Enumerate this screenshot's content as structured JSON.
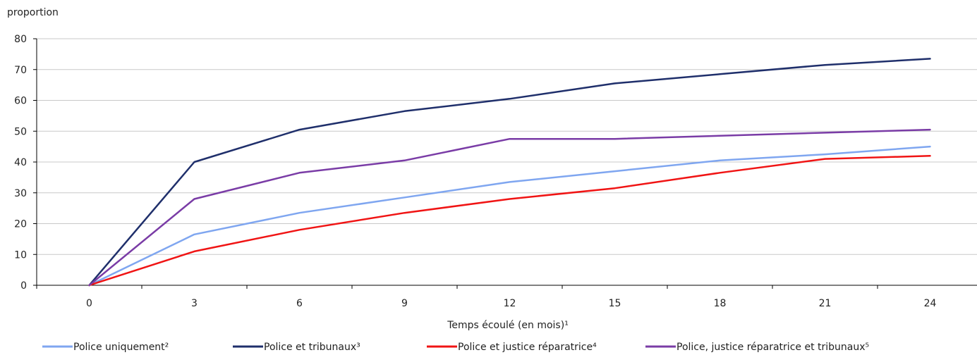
{
  "chart_data": {
    "type": "line",
    "ylabel": "proportion",
    "xlabel": "Temps écoulé (en mois)¹",
    "x": [
      0,
      3,
      6,
      9,
      12,
      15,
      18,
      21,
      24
    ],
    "ylim": [
      0,
      80
    ],
    "y_ticks": [
      0,
      10,
      20,
      30,
      40,
      50,
      60,
      70,
      80
    ],
    "grid": true,
    "legend_position": "bottom",
    "series": [
      {
        "name": "Police uniquement²",
        "color": "#7FA6F0",
        "values": [
          0,
          16.5,
          23.5,
          28.5,
          33.5,
          37,
          40.5,
          42.5,
          45
        ]
      },
      {
        "name": "Police et tribunaux³",
        "color": "#1F2F6B",
        "values": [
          0,
          40,
          50.5,
          56.5,
          60.5,
          65.5,
          68.5,
          71.5,
          73.5
        ]
      },
      {
        "name": "Police et justice réparatrice⁴",
        "color": "#F01414",
        "values": [
          0,
          11,
          18,
          23.5,
          28,
          31.5,
          36.5,
          41,
          42
        ]
      },
      {
        "name": "Police, justice réparatrice et tribunaux⁵",
        "color": "#7A3CA6",
        "values": [
          0,
          28,
          36.5,
          40.5,
          47.5,
          47.5,
          48.5,
          49.5,
          50.5
        ]
      }
    ]
  }
}
